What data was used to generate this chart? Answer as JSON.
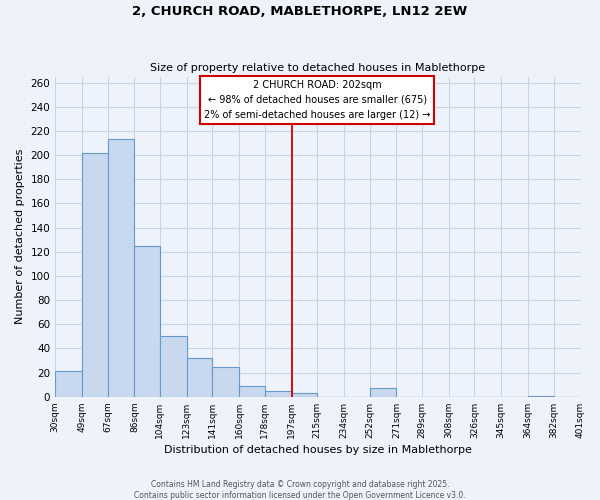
{
  "title1": "2, CHURCH ROAD, MABLETHORPE, LN12 2EW",
  "title2": "Size of property relative to detached houses in Mablethorpe",
  "xlabel": "Distribution of detached houses by size in Mablethorpe",
  "ylabel": "Number of detached properties",
  "bar_color": "#c8d8ee",
  "bar_edge_color": "#6699cc",
  "grid_color": "#c8d4e8",
  "background_color": "#eef2fa",
  "bins": [
    30,
    49,
    67,
    86,
    104,
    123,
    141,
    160,
    178,
    197,
    215,
    234,
    252,
    271,
    289,
    308,
    326,
    345,
    364,
    382,
    401
  ],
  "values": [
    21,
    202,
    213,
    125,
    50,
    32,
    25,
    9,
    5,
    3,
    0,
    0,
    7,
    0,
    0,
    0,
    0,
    0,
    1,
    0
  ],
  "tick_labels": [
    "30sqm",
    "49sqm",
    "67sqm",
    "86sqm",
    "104sqm",
    "123sqm",
    "141sqm",
    "160sqm",
    "178sqm",
    "197sqm",
    "215sqm",
    "234sqm",
    "252sqm",
    "271sqm",
    "289sqm",
    "308sqm",
    "326sqm",
    "345sqm",
    "364sqm",
    "382sqm",
    "401sqm"
  ],
  "property_line_color": "#cc0000",
  "annotation_title": "2 CHURCH ROAD: 202sqm",
  "annotation_line1": "← 98% of detached houses are smaller (675)",
  "annotation_line2": "2% of semi-detached houses are larger (12) →",
  "annotation_box_color": "#ffffff",
  "annotation_box_edge": "#cc0000",
  "footer1": "Contains HM Land Registry data © Crown copyright and database right 2025.",
  "footer2": "Contains public sector information licensed under the Open Government Licence v3.0.",
  "ylim": [
    0,
    265
  ],
  "yticks": [
    0,
    20,
    40,
    60,
    80,
    100,
    120,
    140,
    160,
    180,
    200,
    220,
    240,
    260
  ]
}
